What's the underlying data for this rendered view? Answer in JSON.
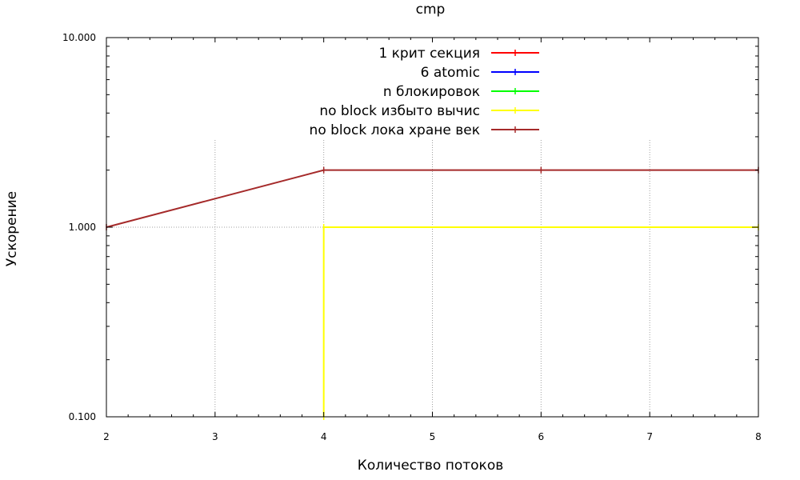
{
  "chart_data": {
    "type": "line",
    "title": "cmp",
    "xlabel": "Количество потоков",
    "ylabel": "Ускорение",
    "xlim": [
      2,
      8
    ],
    "ylim": [
      0.1,
      10
    ],
    "y_scale": "log",
    "x_ticks": [
      "2",
      "3",
      "4",
      "5",
      "6",
      "7",
      "8"
    ],
    "y_ticks": [
      {
        "value": 0.1,
        "label": "0.100"
      },
      {
        "value": 1,
        "label": "1.000"
      },
      {
        "value": 10,
        "label": "10.000"
      }
    ],
    "grid": true,
    "legend_position": "top-right",
    "series": [
      {
        "name": "1 крит секция",
        "color": "#ff0000",
        "points": []
      },
      {
        "name": "6 atomic",
        "color": "#0000ff",
        "points": []
      },
      {
        "name": "n блокировок",
        "color": "#00ff00",
        "points": []
      },
      {
        "name": "no block избыто вычис",
        "color": "#ffff00",
        "points": [
          [
            4,
            0.1
          ],
          [
            4,
            1.0
          ],
          [
            8,
            1.0
          ]
        ]
      },
      {
        "name": "no block лока хране век",
        "color": "#a52a2a",
        "points": [
          [
            2,
            1.0
          ],
          [
            4,
            2.0
          ],
          [
            6,
            2.0
          ],
          [
            8,
            2.0
          ]
        ]
      }
    ]
  }
}
